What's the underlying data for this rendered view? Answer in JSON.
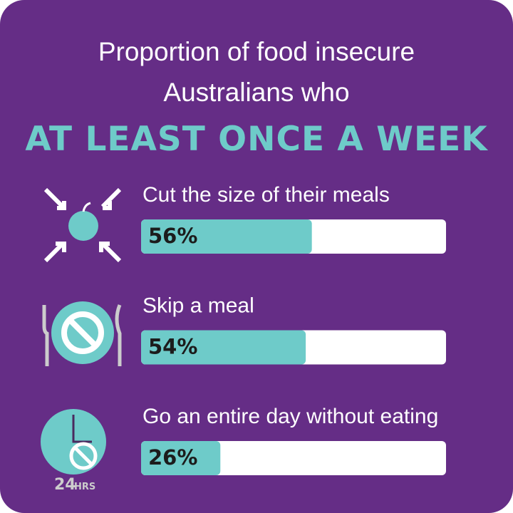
{
  "chart_data": {
    "type": "bar",
    "title": "Proportion of food insecure Australians who",
    "subtitle": "AT LEAST ONCE A WEEK",
    "categories": [
      "Cut the size of their meals",
      "Skip a meal",
      "Go an entire day without eating"
    ],
    "values": [
      56,
      54,
      26
    ],
    "value_labels": [
      "56%",
      "54%",
      "26%"
    ],
    "xlim": [
      0,
      100
    ],
    "color": "#6ecbc9",
    "annotations": [
      "24",
      "HRS"
    ]
  }
}
